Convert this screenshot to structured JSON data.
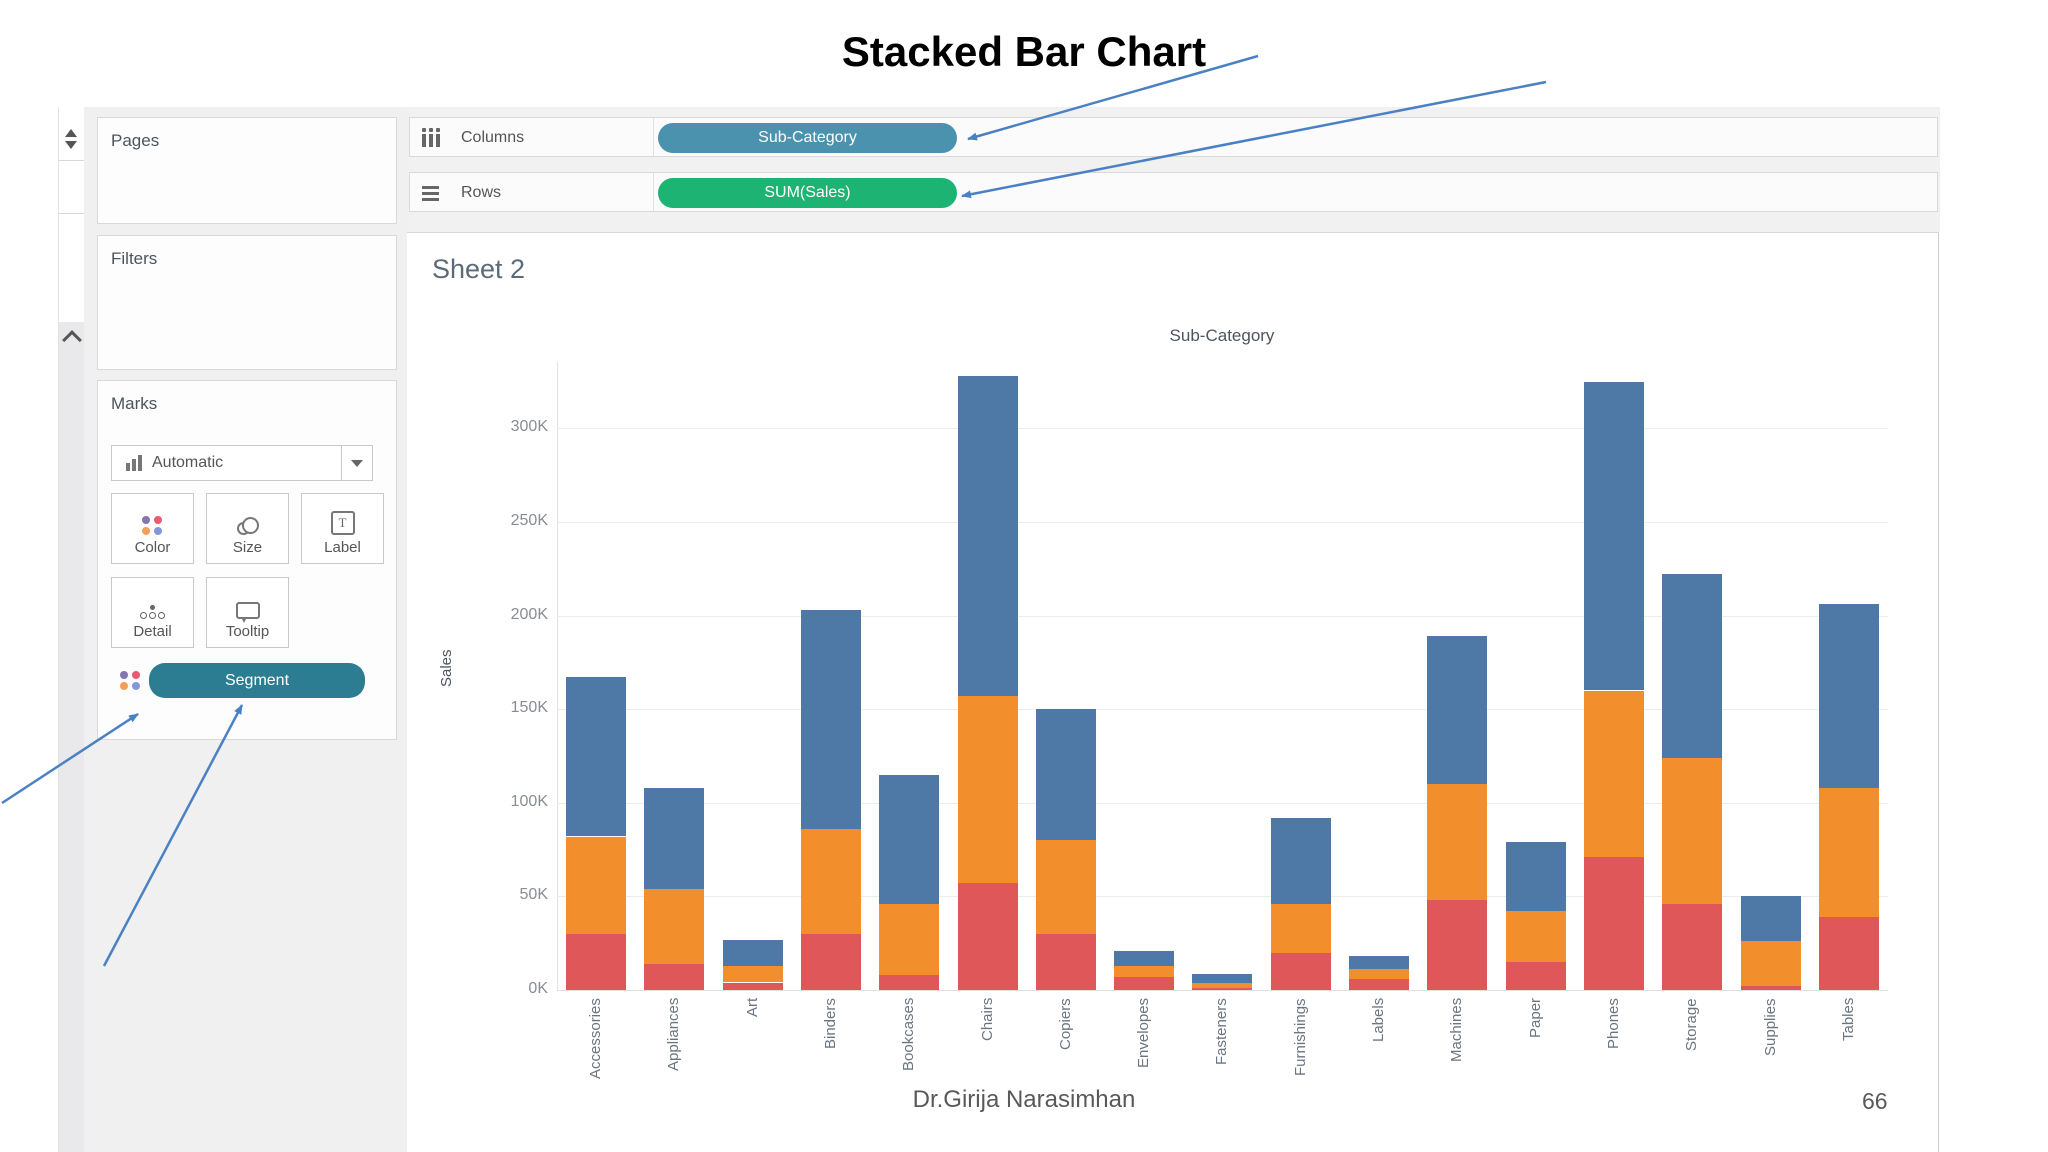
{
  "slide": {
    "title": "Stacked Bar Chart",
    "footer": "Dr.Girija Narasimhan",
    "page_number": "66"
  },
  "shelves": {
    "columns_label": "Columns",
    "columns_pill": "Sub-Category",
    "rows_label": "Rows",
    "rows_pill": "SUM(Sales)",
    "pill_colors": {
      "dimension": "#4B92AE",
      "measure": "#1CB373",
      "segment": "#2C7D92"
    }
  },
  "sidebar": {
    "pages_label": "Pages",
    "filters_label": "Filters",
    "marks": {
      "label": "Marks",
      "mark_type": "Automatic",
      "buttons": [
        "Color",
        "Size",
        "Label",
        "Detail",
        "Tooltip"
      ],
      "encoding_pill": "Segment"
    }
  },
  "sheet": {
    "title": "Sheet 2",
    "pane_header": "Sub-Category",
    "y_axis_label": "Sales"
  },
  "chart_data": {
    "type": "bar",
    "stacked": true,
    "title": "Sub-Category",
    "xlabel": "Sub-Category",
    "ylabel": "Sales",
    "units": "K (thousands of sales)",
    "categories": [
      "Accessories",
      "Appliances",
      "Art",
      "Binders",
      "Bookcases",
      "Chairs",
      "Copiers",
      "Envelopes",
      "Fasteners",
      "Furnishings",
      "Labels",
      "Machines",
      "Paper",
      "Phones",
      "Storage",
      "Supplies",
      "Tables"
    ],
    "series": [
      {
        "name": "segment-bottom (red)",
        "color": "#E05759",
        "values": [
          30,
          14,
          4,
          30,
          8,
          57,
          30,
          7,
          1,
          20,
          6,
          48,
          15,
          71,
          46,
          2,
          39
        ]
      },
      {
        "name": "segment-middle (orange)",
        "color": "#F28E2B",
        "values": [
          52,
          40,
          9,
          56,
          38,
          100,
          50,
          6,
          2.5,
          26,
          5,
          62,
          27,
          89,
          78,
          24,
          69
        ]
      },
      {
        "name": "segment-top (blue)",
        "color": "#4E79A7",
        "values": [
          85,
          54,
          14,
          117,
          69,
          171,
          70,
          8,
          5,
          46,
          7,
          79,
          37,
          165,
          98,
          24,
          98
        ]
      }
    ],
    "totals": [
      167,
      108,
      27,
      203,
      115,
      328,
      150,
      21,
      8.5,
      92,
      18,
      189,
      79,
      325,
      222,
      50,
      206
    ],
    "y_ticks": [
      "0K",
      "50K",
      "100K",
      "150K",
      "200K",
      "250K",
      "300K"
    ],
    "ylim": [
      0,
      335
    ],
    "grid": true,
    "legend_position": "none"
  }
}
